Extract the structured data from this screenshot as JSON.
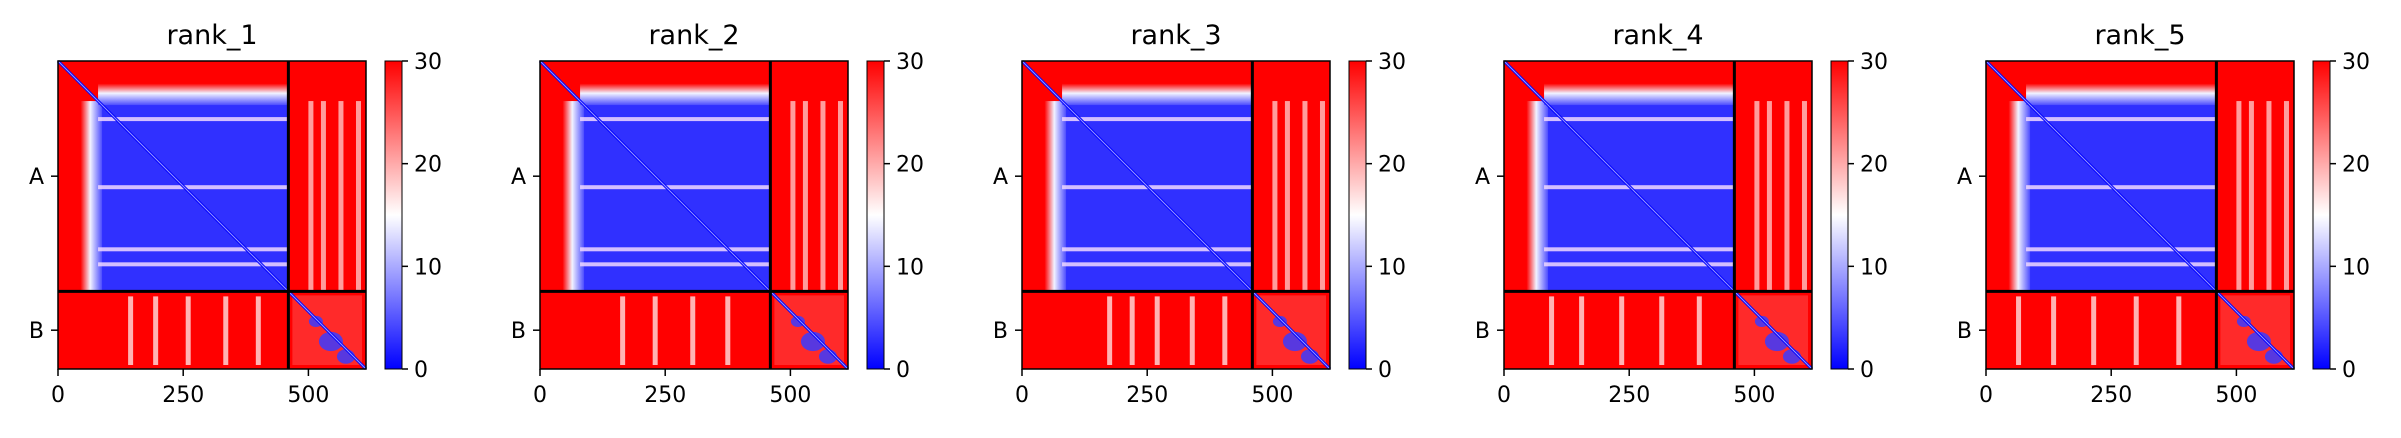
{
  "chart_data": [
    {
      "type": "heatmap",
      "title": "rank_1",
      "chains": [
        "A",
        "B"
      ],
      "chain_boundary": 460,
      "x_range": [
        0,
        615
      ],
      "x_ticks": [
        0,
        250,
        500
      ],
      "colorbar": {
        "range": [
          0,
          30
        ],
        "ticks": [
          0,
          10,
          20,
          30
        ],
        "colors": [
          "#0000ff",
          "#ffffff",
          "#ff0000"
        ]
      },
      "a_core_start": 80,
      "a_gap_rows": [
        112,
        248,
        372,
        402
      ],
      "b_lane_stripes": [
        140,
        190,
        255,
        330,
        395
      ]
    },
    {
      "type": "heatmap",
      "title": "rank_2",
      "chains": [
        "A",
        "B"
      ],
      "chain_boundary": 460,
      "x_range": [
        0,
        615
      ],
      "x_ticks": [
        0,
        250,
        500
      ],
      "colorbar": {
        "range": [
          0,
          30
        ],
        "ticks": [
          0,
          10,
          20,
          30
        ],
        "colors": [
          "#0000ff",
          "#ffffff",
          "#ff0000"
        ]
      },
      "a_core_start": 80,
      "a_gap_rows": [
        112,
        248,
        372,
        402
      ],
      "b_lane_stripes": [
        160,
        225,
        300,
        370
      ]
    },
    {
      "type": "heatmap",
      "title": "rank_3",
      "chains": [
        "A",
        "B"
      ],
      "chain_boundary": 460,
      "x_range": [
        0,
        615
      ],
      "x_ticks": [
        0,
        250,
        500
      ],
      "colorbar": {
        "range": [
          0,
          30
        ],
        "ticks": [
          0,
          10,
          20,
          30
        ],
        "colors": [
          "#0000ff",
          "#ffffff",
          "#ff0000"
        ]
      },
      "a_core_start": 80,
      "a_gap_rows": [
        112,
        248,
        372,
        402
      ],
      "b_lane_stripes": [
        170,
        215,
        265,
        335,
        400
      ]
    },
    {
      "type": "heatmap",
      "title": "rank_4",
      "chains": [
        "A",
        "B"
      ],
      "chain_boundary": 460,
      "x_range": [
        0,
        615
      ],
      "x_ticks": [
        0,
        250,
        500
      ],
      "colorbar": {
        "range": [
          0,
          30
        ],
        "ticks": [
          0,
          10,
          20,
          30
        ],
        "colors": [
          "#0000ff",
          "#ffffff",
          "#ff0000"
        ]
      },
      "a_core_start": 80,
      "a_gap_rows": [
        112,
        248,
        372,
        402
      ],
      "b_lane_stripes": [
        90,
        150,
        230,
        310,
        385
      ]
    },
    {
      "type": "heatmap",
      "title": "rank_5",
      "chains": [
        "A",
        "B"
      ],
      "chain_boundary": 460,
      "x_range": [
        0,
        615
      ],
      "x_ticks": [
        0,
        250,
        500
      ],
      "colorbar": {
        "range": [
          0,
          30
        ],
        "ticks": [
          0,
          10,
          20,
          30
        ],
        "colors": [
          "#0000ff",
          "#ffffff",
          "#ff0000"
        ]
      },
      "a_core_start": 80,
      "a_gap_rows": [
        112,
        248,
        372,
        402
      ],
      "b_lane_stripes": [
        60,
        130,
        210,
        295,
        380
      ]
    }
  ]
}
